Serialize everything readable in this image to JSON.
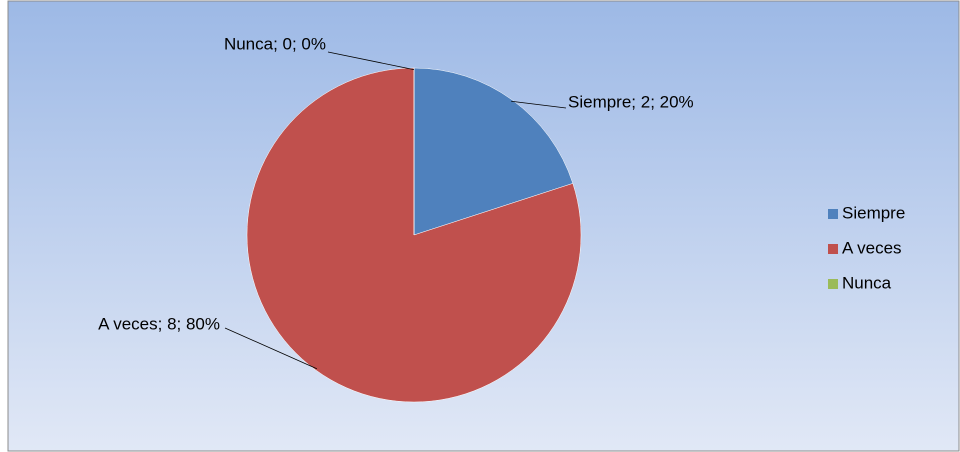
{
  "chart_data": {
    "type": "pie",
    "categories": [
      "Siempre",
      "A veces",
      "Nunca"
    ],
    "values": [
      2,
      8,
      0
    ],
    "value_labels": [
      "Siempre; 2; 20%",
      "A veces; 8; 80%",
      "Nunca; 0; 0%"
    ],
    "colors": [
      "#4f81bd",
      "#c0504d",
      "#9bbb59"
    ],
    "legend": "right"
  }
}
